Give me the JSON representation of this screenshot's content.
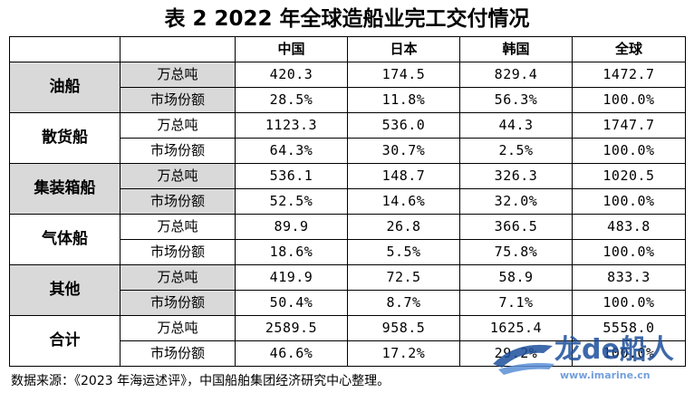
{
  "title": "表 2  2022 年全球造船业完工交付情况",
  "headers": [
    "",
    "",
    "中国",
    "日本",
    "韩国",
    "全球"
  ],
  "groups": [
    {
      "category": "油船",
      "rows": [
        {
          "unit": "万总吨",
          "values": [
            "420.3",
            "174.5",
            "829.4",
            "1472.7"
          ]
        },
        {
          "unit": "市场份额",
          "values": [
            "28.5%",
            "11.8%",
            "56.3%",
            "100.0%"
          ]
        }
      ]
    },
    {
      "category": "散货船",
      "rows": [
        {
          "unit": "万总吨",
          "values": [
            "1123.3",
            "536.0",
            "44.3",
            "1747.7"
          ]
        },
        {
          "unit": "市场份额",
          "values": [
            "64.3%",
            "30.7%",
            "2.5%",
            "100.0%"
          ]
        }
      ]
    },
    {
      "category": "集装箱船",
      "rows": [
        {
          "unit": "万总吨",
          "values": [
            "536.1",
            "148.7",
            "326.3",
            "1020.5"
          ]
        },
        {
          "unit": "市场份额",
          "values": [
            "52.5%",
            "14.6%",
            "32.0%",
            "100.0%"
          ]
        }
      ]
    },
    {
      "category": "气体船",
      "rows": [
        {
          "unit": "万总吨",
          "values": [
            "89.9",
            "26.8",
            "366.5",
            "483.8"
          ]
        },
        {
          "unit": "市场份额",
          "values": [
            "18.6%",
            "5.5%",
            "75.8%",
            "100.0%"
          ]
        }
      ]
    },
    {
      "category": "其他",
      "rows": [
        {
          "unit": "万总吨",
          "values": [
            "419.9",
            "72.5",
            "58.9",
            "833.3"
          ]
        },
        {
          "unit": "市场份额",
          "values": [
            "50.4%",
            "8.7%",
            "7.1%",
            "100.0%"
          ]
        }
      ]
    },
    {
      "category": "合计",
      "rows": [
        {
          "unit": "万总吨",
          "values": [
            "2589.5",
            "958.5",
            "1625.4",
            "5558.0"
          ]
        },
        {
          "unit": "市场份额",
          "values": [
            "46.6%",
            "17.2%",
            "29.2%",
            "100.0%"
          ]
        }
      ]
    }
  ],
  "source": "数据来源：《2023 年海运述评》，中国船舶集团经济研究中心整理。",
  "watermark": {
    "brand": "龙de船人",
    "url": "www.imarine.cn"
  },
  "colors": {
    "band_gray": "#d9d9d9",
    "logo_blue": "#1d4f9c"
  }
}
